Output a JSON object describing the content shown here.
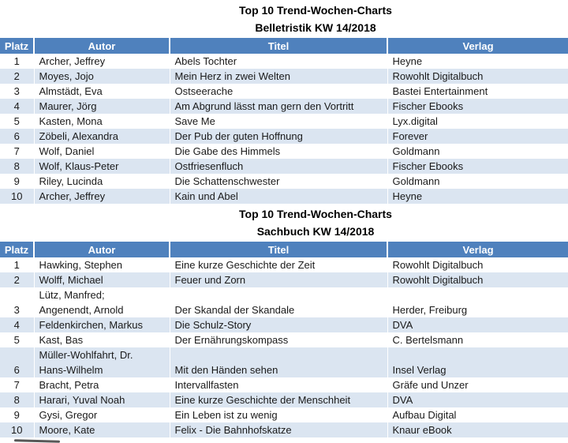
{
  "colors": {
    "header_bg": "#4F81BD",
    "header_text": "#ffffff",
    "band_bg": "#DBE5F1",
    "body_text": "#1a1a1a",
    "title_text": "#000000",
    "page_bg": "#ffffff"
  },
  "sections": [
    {
      "title_line1": "Top 10 Trend-Wochen-Charts",
      "title_line2": "Belletristik KW 14/2018",
      "columns": [
        "Platz",
        "Autor",
        "Titel",
        "Verlag"
      ],
      "rows": [
        {
          "platz": "1",
          "autor": "Archer, Jeffrey",
          "titel": "Abels Tochter",
          "verlag": "Heyne"
        },
        {
          "platz": "2",
          "autor": "Moyes, Jojo",
          "titel": "Mein Herz in zwei Welten",
          "verlag": "Rowohlt Digitalbuch"
        },
        {
          "platz": "3",
          "autor": "Almstädt, Eva",
          "titel": "Ostseerache",
          "verlag": "Bastei Entertainment"
        },
        {
          "platz": "4",
          "autor": "Maurer, Jörg",
          "titel": "Am Abgrund lässt man gern den Vortritt",
          "verlag": "Fischer Ebooks"
        },
        {
          "platz": "5",
          "autor": "Kasten, Mona",
          "titel": "Save Me",
          "verlag": "Lyx.digital"
        },
        {
          "platz": "6",
          "autor": "Zöbeli, Alexandra",
          "titel": "Der Pub der guten Hoffnung",
          "verlag": "Forever"
        },
        {
          "platz": "7",
          "autor": "Wolf, Daniel",
          "titel": "Die Gabe des Himmels",
          "verlag": "Goldmann"
        },
        {
          "platz": "8",
          "autor": "Wolf, Klaus-Peter",
          "titel": "Ostfriesenfluch",
          "verlag": "Fischer Ebooks"
        },
        {
          "platz": "9",
          "autor": "Riley, Lucinda",
          "titel": "Die Schattenschwester",
          "verlag": "Goldmann"
        },
        {
          "platz": "10",
          "autor": "Archer, Jeffrey",
          "titel": "Kain und Abel",
          "verlag": "Heyne"
        }
      ]
    },
    {
      "title_line1": "Top 10 Trend-Wochen-Charts",
      "title_line2": "Sachbuch KW 14/2018",
      "columns": [
        "Platz",
        "Autor",
        "Titel",
        "Verlag"
      ],
      "rows": [
        {
          "platz": "1",
          "autor": "Hawking, Stephen",
          "titel": "Eine kurze Geschichte der Zeit",
          "verlag": "Rowohlt Digitalbuch"
        },
        {
          "platz": "2",
          "autor": "Wolff, Michael",
          "titel": "Feuer und Zorn",
          "verlag": "Rowohlt Digitalbuch"
        },
        {
          "platz": "3",
          "autor": "Lütz, Manfred;\nAngenendt, Arnold",
          "titel": "Der Skandal der Skandale",
          "verlag": "Herder, Freiburg"
        },
        {
          "platz": "4",
          "autor": "Feldenkirchen, Markus",
          "titel": "Die Schulz-Story",
          "verlag": "DVA"
        },
        {
          "platz": "5",
          "autor": "Kast, Bas",
          "titel": "Der Ernährungskompass",
          "verlag": "C. Bertelsmann"
        },
        {
          "platz": "6",
          "autor": "Müller-Wohlfahrt, Dr.\nHans-Wilhelm",
          "titel": "Mit den Händen sehen",
          "verlag": "Insel Verlag"
        },
        {
          "platz": "7",
          "autor": "Bracht, Petra",
          "titel": "Intervallfasten",
          "verlag": "Gräfe und Unzer"
        },
        {
          "platz": "8",
          "autor": "Harari, Yuval Noah",
          "titel": "Eine kurze Geschichte der Menschheit",
          "verlag": "DVA"
        },
        {
          "platz": "9",
          "autor": "Gysi, Gregor",
          "titel": "Ein Leben ist zu wenig",
          "verlag": "Aufbau Digital"
        },
        {
          "platz": "10",
          "autor": "Moore, Kate",
          "titel": "Felix - Die Bahnhofskatze",
          "verlag": "Knaur eBook"
        }
      ]
    }
  ]
}
